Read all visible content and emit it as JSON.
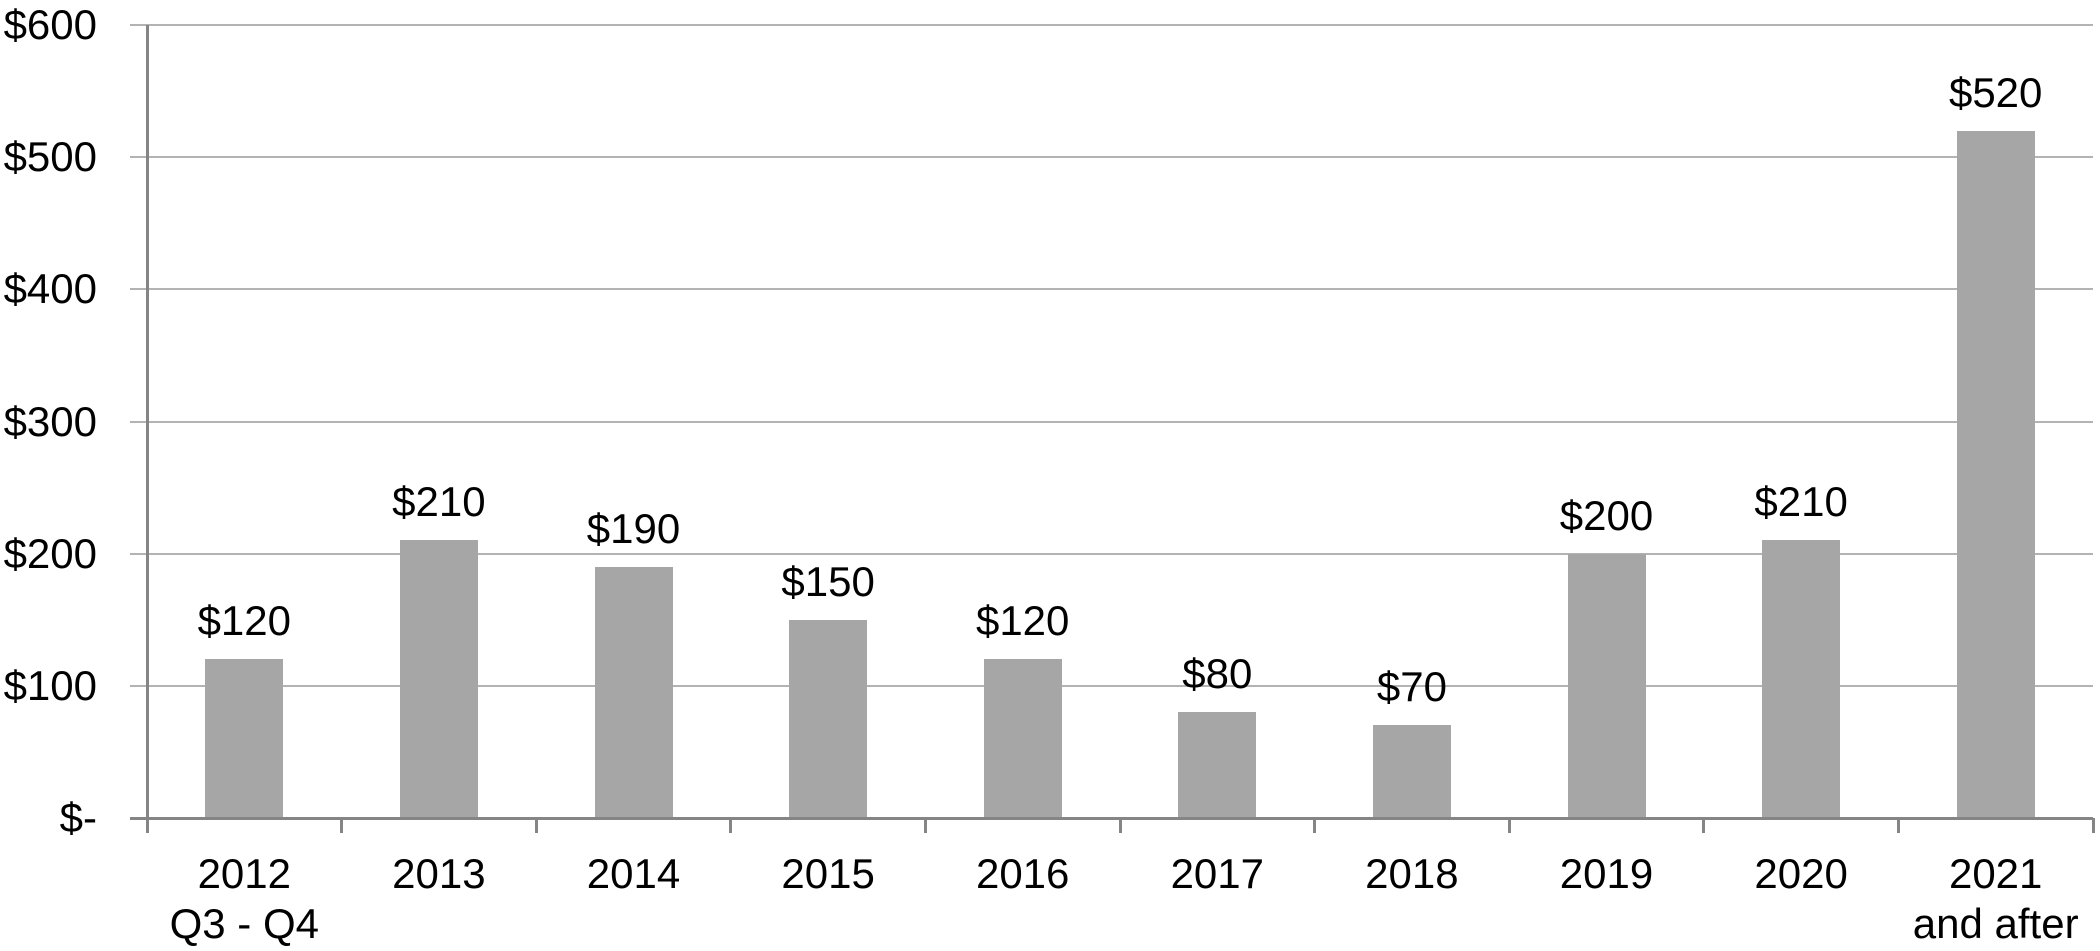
{
  "chart_data": {
    "type": "bar",
    "title": "",
    "xlabel": "",
    "ylabel": "",
    "legend": "none",
    "grid": true,
    "categories": [
      {
        "label": "2012",
        "sublabel": "Q3 - Q4"
      },
      {
        "label": "2013",
        "sublabel": ""
      },
      {
        "label": "2014",
        "sublabel": ""
      },
      {
        "label": "2015",
        "sublabel": ""
      },
      {
        "label": "2016",
        "sublabel": ""
      },
      {
        "label": "2017",
        "sublabel": ""
      },
      {
        "label": "2018",
        "sublabel": ""
      },
      {
        "label": "2019",
        "sublabel": ""
      },
      {
        "label": "2020",
        "sublabel": ""
      },
      {
        "label": "2021",
        "sublabel": "and after"
      }
    ],
    "values": [
      120,
      210,
      190,
      150,
      120,
      80,
      70,
      200,
      210,
      520
    ],
    "data_labels": [
      "$120",
      "$210",
      "$190",
      "$150",
      "$120",
      "$80",
      "$70",
      "$200",
      "$210",
      "$520"
    ],
    "y_axis": {
      "min": 0,
      "max": 600,
      "tick_interval": 100,
      "ticks": [
        {
          "value": 600,
          "label": "$600"
        },
        {
          "value": 500,
          "label": "$500"
        },
        {
          "value": 400,
          "label": "$400"
        },
        {
          "value": 300,
          "label": "$300"
        },
        {
          "value": 200,
          "label": "$200"
        },
        {
          "value": 100,
          "label": "$100"
        },
        {
          "value": 0,
          "label": "$-"
        }
      ]
    },
    "colors": {
      "bar_fill": "#a6a6a6",
      "gridline": "#b3b3b3",
      "axis_line": "#858585",
      "label_text": "#000000",
      "background": "#ffffff"
    }
  }
}
